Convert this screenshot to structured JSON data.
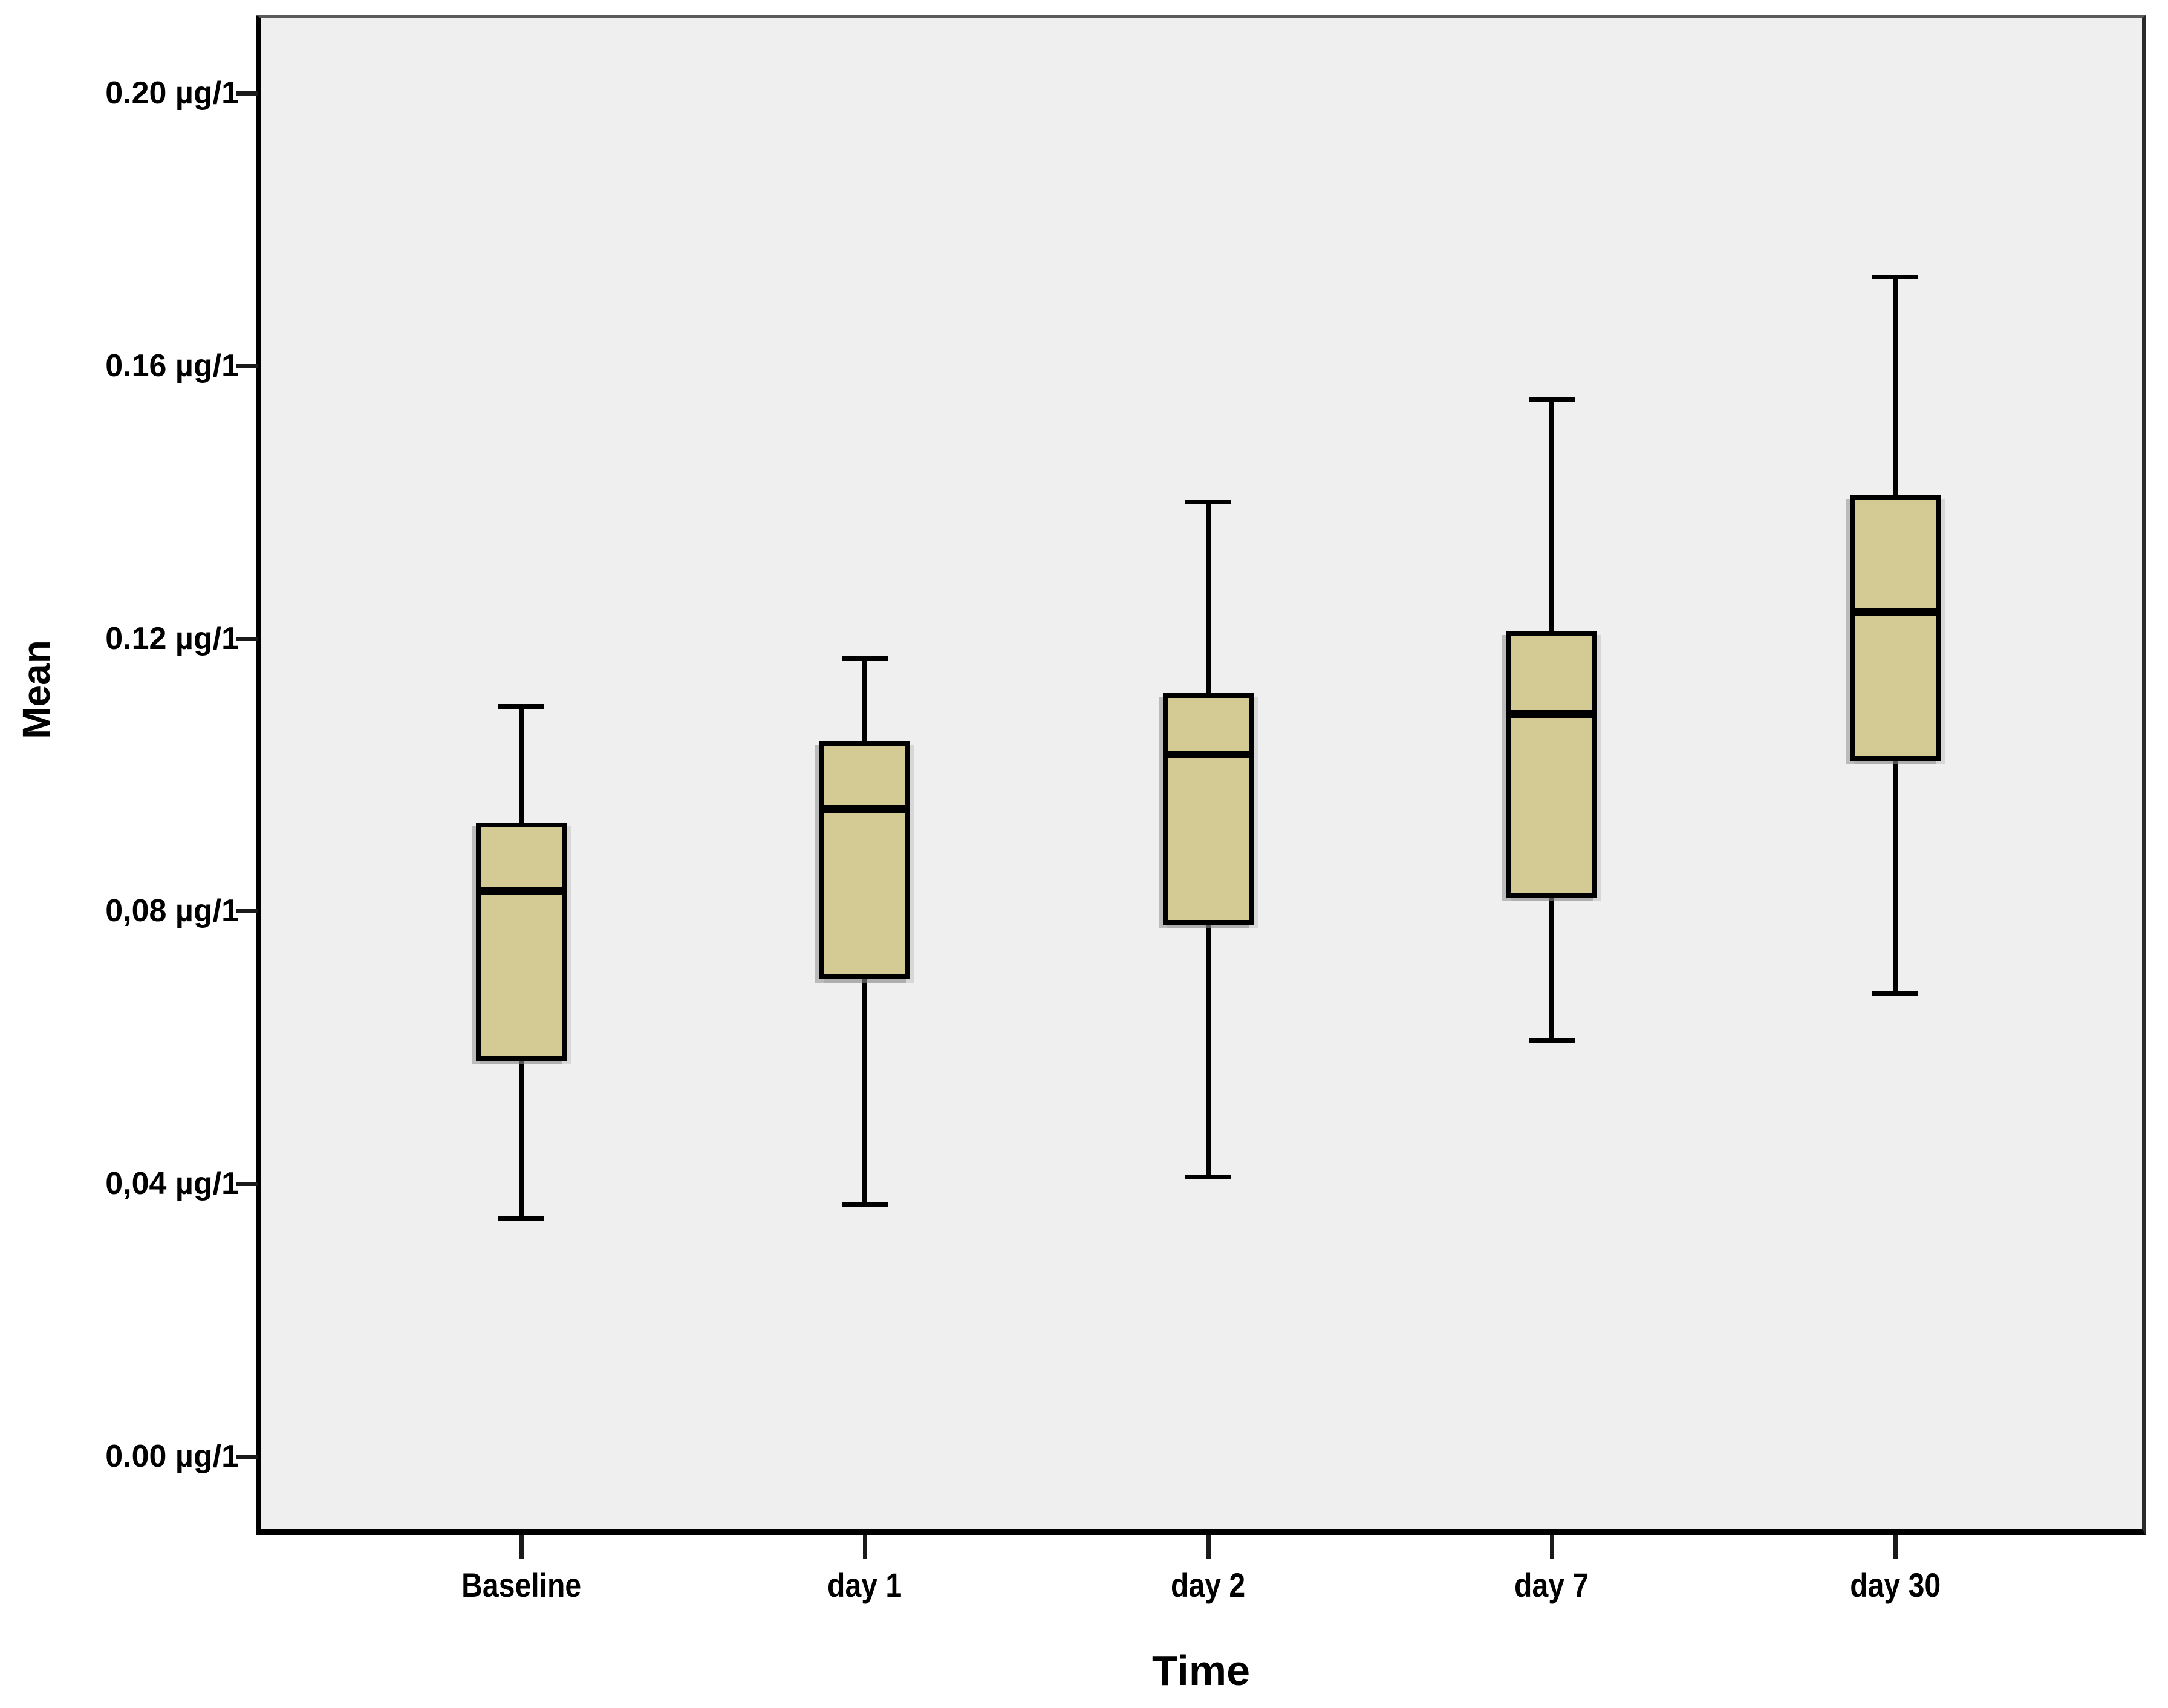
{
  "figure": {
    "background": "#ffffff",
    "plot_background": "#efefef",
    "frame_color": "#000000"
  },
  "chart_data": {
    "type": "boxplot",
    "title": "",
    "xlabel": "Time",
    "ylabel": "Mean",
    "unit": "µg/1",
    "grid": false,
    "legend": null,
    "box_fill": "#d3cb93",
    "box_border": "#000000",
    "ylim": [
      0.0,
      0.21
    ],
    "yticks": [
      {
        "value": 0.2,
        "label": "0.20 µg/1"
      },
      {
        "value": 0.16,
        "label": "0.16 µg/1"
      },
      {
        "value": 0.12,
        "label": "0.12 µg/1"
      },
      {
        "value": 0.08,
        "label": "0,08 µg/1"
      },
      {
        "value": 0.04,
        "label": "0,04 µg/1"
      },
      {
        "value": 0.0,
        "label": "0.00 µg/1"
      }
    ],
    "categories": [
      "Baseline",
      "day 1",
      "day 2",
      "day 7",
      "day 30"
    ],
    "series": [
      {
        "name": "Baseline",
        "min": 0.035,
        "q1": 0.058,
        "median": 0.083,
        "q3": 0.093,
        "max": 0.11
      },
      {
        "name": "day 1",
        "min": 0.037,
        "q1": 0.07,
        "median": 0.095,
        "q3": 0.105,
        "max": 0.117
      },
      {
        "name": "day 2",
        "min": 0.041,
        "q1": 0.078,
        "median": 0.103,
        "q3": 0.112,
        "max": 0.14
      },
      {
        "name": "day 7",
        "min": 0.061,
        "q1": 0.082,
        "median": 0.109,
        "q3": 0.121,
        "max": 0.155
      },
      {
        "name": "day 30",
        "min": 0.068,
        "q1": 0.102,
        "median": 0.124,
        "q3": 0.141,
        "max": 0.173
      }
    ]
  }
}
